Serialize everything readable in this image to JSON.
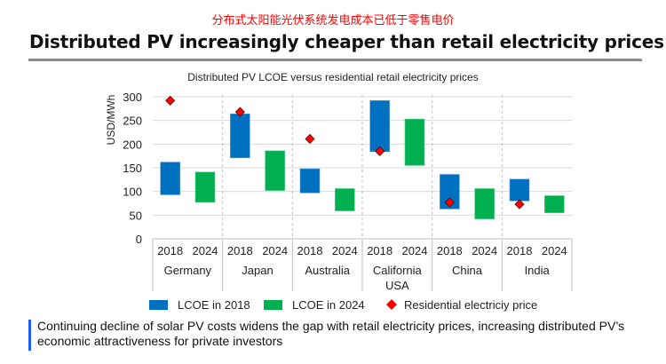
{
  "header": {
    "cn_title": "分布式太阳能光伏系统发电成本已低于零售电价",
    "title": "Distributed PV increasingly cheaper than retail electricity prices"
  },
  "chart_data": {
    "type": "bar",
    "subtype": "floating-range-bar-with-markers",
    "title": "Distributed PV LCOE versus residential retail electricity prices",
    "xlabel": "",
    "ylabel": "USD/MWh",
    "ylim": [
      0,
      300
    ],
    "yticks": [
      0,
      50,
      100,
      150,
      200,
      250,
      300
    ],
    "grid": true,
    "legend_position": "bottom",
    "categories": [
      "Germany",
      "Japan",
      "Australia",
      "California\nUSA",
      "China",
      "India"
    ],
    "category_labels": [
      [
        "Germany"
      ],
      [
        "Japan"
      ],
      [
        "Australia"
      ],
      [
        "California",
        "USA"
      ],
      [
        "China"
      ],
      [
        "India"
      ]
    ],
    "sub_categories": [
      "2018",
      "2024"
    ],
    "series": [
      {
        "name": "LCOE in 2018",
        "color": "#0070C0",
        "ranges": [
          [
            93,
            162
          ],
          [
            171,
            264
          ],
          [
            97,
            148
          ],
          [
            184,
            292
          ],
          [
            63,
            136
          ],
          [
            80,
            126
          ]
        ]
      },
      {
        "name": "LCOE in 2024",
        "color": "#00B050",
        "ranges": [
          [
            77,
            141
          ],
          [
            102,
            186
          ],
          [
            59,
            106
          ],
          [
            155,
            253
          ],
          [
            42,
            106
          ],
          [
            55,
            91
          ]
        ]
      },
      {
        "name": "Residential electriciy price",
        "color": "#FF0000",
        "marker": "diamond",
        "position": "2018",
        "values": [
          292,
          268,
          211,
          185,
          77,
          73
        ]
      }
    ]
  },
  "footer": {
    "text": "Continuing decline of solar PV costs widens the gap with retail electricity prices, increasing distributed PV’s economic attractiveness for private investors"
  }
}
